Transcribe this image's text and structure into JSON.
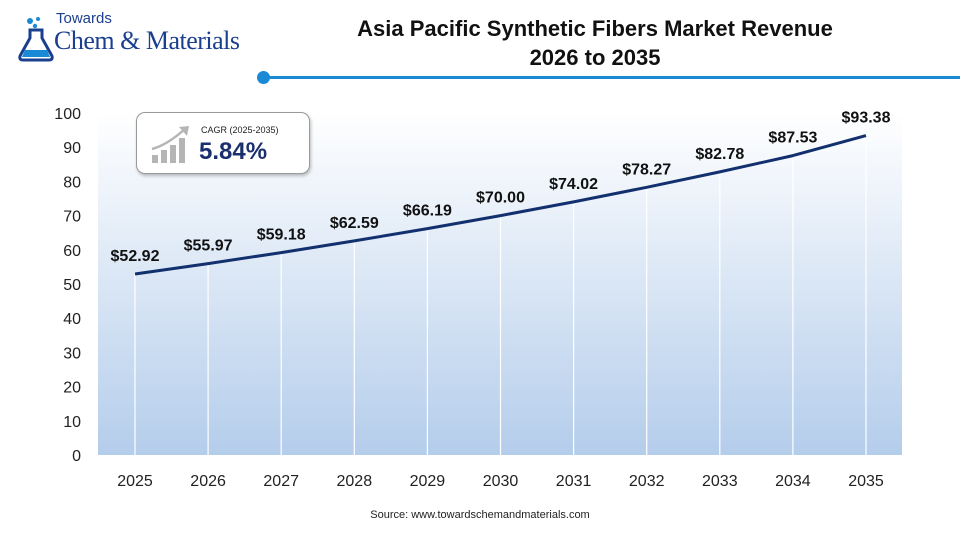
{
  "logo": {
    "line1": "Towards",
    "line2": "Chem & Materials"
  },
  "title_line1": "Asia Pacific Synthetic Fibers Market Revenue",
  "title_line2": "2026 to 2035",
  "cagr": {
    "label": "CAGR (2025-2035)",
    "value": "5.84%"
  },
  "source": "Source: www.towardschemandmaterials.com",
  "colors": {
    "accent": "#1b8ad6",
    "line": "#12306e",
    "brand": "#1a3f8f"
  },
  "chart_data": {
    "type": "line",
    "title": "Asia Pacific Synthetic Fibers Market Revenue 2026 to 2035",
    "x": [
      "2025",
      "2026",
      "2027",
      "2028",
      "2029",
      "2030",
      "2031",
      "2032",
      "2033",
      "2034",
      "2035"
    ],
    "series": [
      {
        "values": [
          52.92,
          55.97,
          59.18,
          62.59,
          66.19,
          70.0,
          74.02,
          78.27,
          82.78,
          87.53,
          93.38
        ]
      }
    ],
    "data_labels": [
      "$52.92",
      "$55.97",
      "$59.18",
      "$62.59",
      "$66.19",
      "$70.00",
      "$74.02",
      "$78.27",
      "$82.78",
      "$87.53",
      "$93.38"
    ],
    "yticks": [
      "0",
      "10",
      "20",
      "30",
      "40",
      "50",
      "60",
      "70",
      "80",
      "90",
      "100"
    ],
    "ylim": [
      0,
      100
    ],
    "grid": "vertical",
    "legend": "none"
  }
}
